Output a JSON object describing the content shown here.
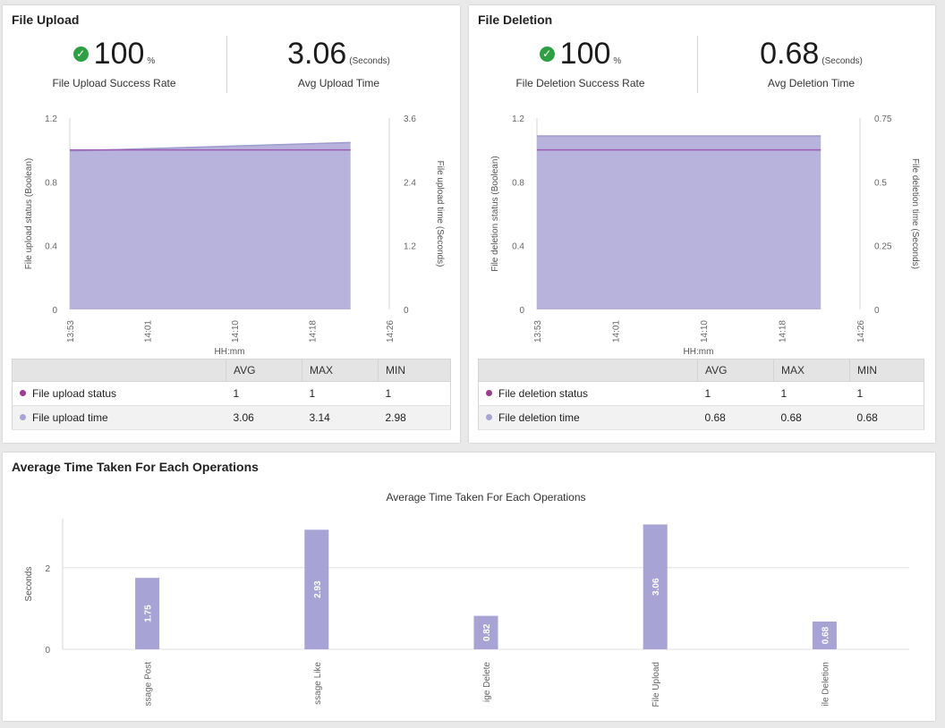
{
  "upload": {
    "title": "File Upload",
    "kpi1": {
      "value": "100",
      "unit": "%",
      "label": "File Upload Success Rate"
    },
    "kpi2": {
      "value": "3.06",
      "unit": "(Seconds)",
      "label": "Avg Upload Time"
    },
    "table": {
      "headers": [
        "",
        "AVG",
        "MAX",
        "MIN"
      ],
      "rows": [
        {
          "name": "File upload status",
          "avg": "1",
          "max": "1",
          "min": "1",
          "color": "#a03a8e"
        },
        {
          "name": "File upload time",
          "avg": "3.06",
          "max": "3.14",
          "min": "2.98",
          "color": "#a7a3d4"
        }
      ]
    }
  },
  "deletion": {
    "title": "File Deletion",
    "kpi1": {
      "value": "100",
      "unit": "%",
      "label": "File Deletion Success Rate"
    },
    "kpi2": {
      "value": "0.68",
      "unit": "(Seconds)",
      "label": "Avg Deletion Time"
    },
    "table": {
      "headers": [
        "",
        "AVG",
        "MAX",
        "MIN"
      ],
      "rows": [
        {
          "name": "File deletion status",
          "avg": "1",
          "max": "1",
          "min": "1",
          "color": "#a03a8e"
        },
        {
          "name": "File deletion time",
          "avg": "0.68",
          "max": "0.68",
          "min": "0.68",
          "color": "#a7a3d4"
        }
      ]
    }
  },
  "operations": {
    "title": "Average Time Taken For Each Operations"
  },
  "colors": {
    "status_line": "#9a5bb0",
    "time_area": "#b7b3dc",
    "time_area_edge": "#9f9bd0",
    "bar": "#a7a3d4",
    "success": "#2ea043"
  },
  "chart_data": [
    {
      "type": "area",
      "xlabel": "HH:mm",
      "x_ticks": [
        "13:53",
        "14:01",
        "14:10",
        "14:18",
        "14:26"
      ],
      "ylabel": "File upload status (Boolean)",
      "y2label": "File upload time (Seconds)",
      "ylim": [
        0,
        1.2
      ],
      "y2lim": [
        0,
        3.6
      ],
      "y_ticks": [
        "1.2",
        "0.8",
        "0.4",
        "0"
      ],
      "y2_ticks": [
        "3.6",
        "2.4",
        "1.2",
        "0"
      ],
      "series": [
        {
          "name": "File upload status",
          "axis": "left",
          "type": "line",
          "x": [
            "13:53",
            "14:22"
          ],
          "values": [
            1,
            1
          ]
        },
        {
          "name": "File upload time",
          "axis": "right",
          "type": "area",
          "x": [
            "13:53",
            "14:22"
          ],
          "values": [
            2.98,
            3.14
          ]
        }
      ]
    },
    {
      "type": "area",
      "xlabel": "HH:mm",
      "x_ticks": [
        "13:53",
        "14:01",
        "14:10",
        "14:18",
        "14:26"
      ],
      "ylabel": "File deletion status (Boolean)",
      "y2label": "File deletion time (Seconds)",
      "ylim": [
        0,
        1.2
      ],
      "y2lim": [
        0,
        0.75
      ],
      "y_ticks": [
        "1.2",
        "0.8",
        "0.4",
        "0"
      ],
      "y2_ticks": [
        "0.75",
        "0.5",
        "0.25",
        "0"
      ],
      "series": [
        {
          "name": "File deletion status",
          "axis": "left",
          "type": "line",
          "x": [
            "13:53",
            "14:22"
          ],
          "values": [
            1,
            1
          ]
        },
        {
          "name": "File deletion time",
          "axis": "right",
          "type": "area",
          "x": [
            "13:53",
            "14:22"
          ],
          "values": [
            0.68,
            0.68
          ]
        }
      ]
    },
    {
      "type": "bar",
      "title": "Average Time Taken For Each Operations",
      "ylabel": "Seconds",
      "ylim": [
        0,
        3.2
      ],
      "y_ticks": [
        "2",
        "0"
      ],
      "categories": [
        "ssage Post",
        "ssage Like",
        "ige Delete",
        "File Upload",
        "ile Deletion"
      ],
      "values": [
        1.75,
        2.93,
        0.82,
        3.06,
        0.68
      ],
      "value_labels": [
        "1.75",
        "2.93",
        "0.82",
        "3.06",
        "0.68"
      ]
    }
  ]
}
